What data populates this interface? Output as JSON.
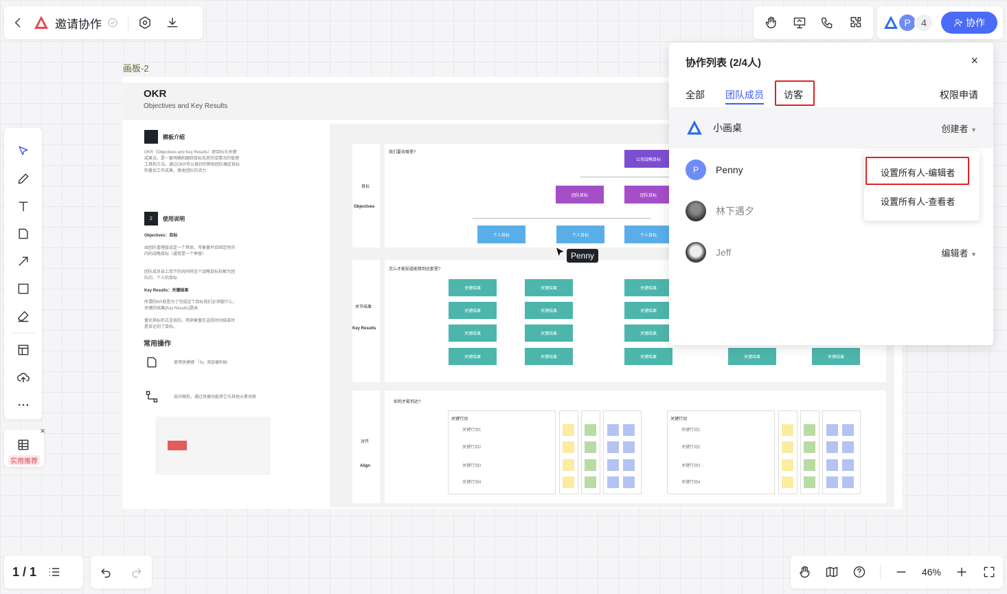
{
  "header": {
    "title": "邀请协作"
  },
  "users_bar": {
    "avatar_p": "P",
    "count": "4",
    "collab_button": "协作"
  },
  "board": {
    "label": "画板-2",
    "title": "OKR",
    "subtitle": "Objectives and Key Results",
    "intro_title": "模板介绍",
    "intro_text": "OKR（Objectives and Key Results）即目标与关键成果法，是一套明确和跟踪目标及其完成情况的管理工具和方法。通过OKR可以很好的帮助团队确定目标和量化工作成果，激发团队的活力",
    "usage_num": "2",
    "usage_title": "使用说明",
    "objectives_label": "Objectives：目标",
    "objectives_text1": "由团队管理层设定一个具体、可衡量并且固定时间内的战略目标（通常是一个季度）",
    "objectives_text2": "团队成员自上而下的共同将这个战略目标拆解为团队的、个人的目标",
    "kr_label": "Key Results：关键结果",
    "kr_text1": "所谓的KR就是为了完成这个目标我们必须做什么，关键的结果(Key Results)是由",
    "kr_text2": "量化指标形式呈现的，用来衡量在这段时间结束时是否达到了目标。",
    "common_ops": "常用操作",
    "op1": "使用快捷键 「N」添加便利贴",
    "op2": "选中图形，通过快捷功能将它与其他元素关联",
    "section1_q": "我们要去哪里?",
    "section1_cn": "目标",
    "section1_en": "Objectives",
    "section2_q": "怎么才能知道能够到达那里?",
    "section2_cn": "关节结果",
    "section2_en": "Key Results",
    "section3_q": "如何才能到达?",
    "section3_cn": "对齐",
    "section3_en": "Align",
    "company_goal": "公司战略目标",
    "team_goal": "团队目标",
    "personal_goal": "个人目标",
    "key_result": "关键结果",
    "key_action_title": "关键行动",
    "key_actions": [
      "关键行动1",
      "关键行动2",
      "关键行动3",
      "关键行动4"
    ],
    "cursor_user": "Penny"
  },
  "collab_panel": {
    "title": "协作列表 (2/4人)",
    "close": "×",
    "tabs": [
      "全部",
      "团队成员",
      "访客"
    ],
    "request_tab": "权限申请",
    "members": [
      {
        "name": "小画桌",
        "role": "创建者"
      },
      {
        "name": "Penny",
        "avatar": "P",
        "role": ""
      },
      {
        "name": "林下遇夕",
        "role": ""
      },
      {
        "name": "Jeff",
        "role": "编辑者"
      }
    ],
    "dropdown": [
      "设置所有人-编辑者",
      "设置所有人-查看者"
    ]
  },
  "left_toolbar": {
    "recommend_badge": "实用推荐"
  },
  "bottom": {
    "page": "1 / 1",
    "zoom": "46%"
  },
  "colors": {
    "accent": "#4a6bf5",
    "highlight_red": "#e02020",
    "teal": "#4db6ac",
    "blue": "#5aaee8",
    "purple": "#a44fc8"
  }
}
